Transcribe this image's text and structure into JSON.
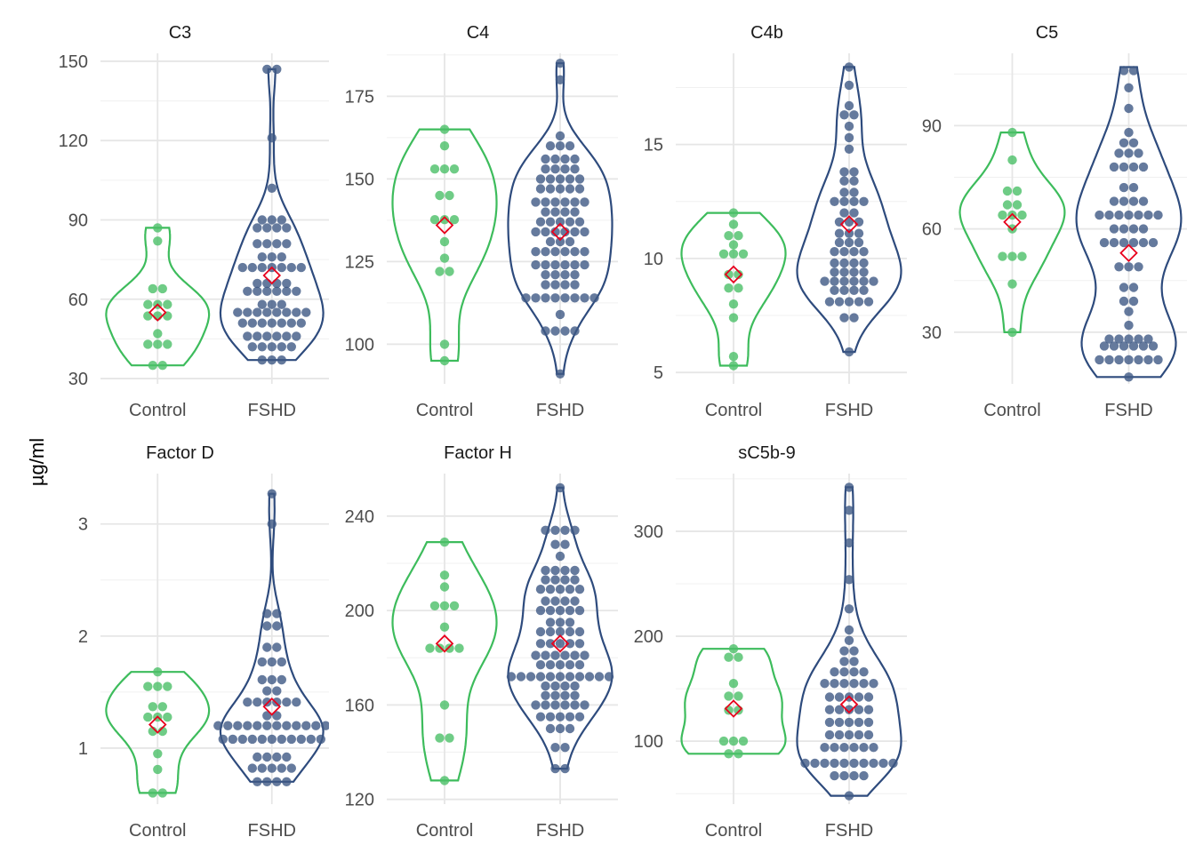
{
  "y_axis_label": "µg/ml",
  "colors": {
    "control": "#4bbf68",
    "fshd": "#2e4b7d",
    "mean_marker": "#e8001c",
    "grid": "#e6e6e6"
  },
  "chart_data": [
    {
      "type": "violin-dotplot",
      "title": "C3",
      "categories": [
        "Control",
        "FSHD"
      ],
      "ylim": [
        28,
        153
      ],
      "yticks": [
        30,
        60,
        90,
        120,
        150
      ],
      "ytick_labels": [
        "30",
        "60",
        "90",
        "120",
        "150"
      ],
      "series": [
        {
          "name": "Control",
          "mean": 55,
          "values": [
            35,
            35,
            43,
            43,
            43,
            47,
            53,
            53,
            55,
            58,
            58,
            58,
            64,
            64,
            82,
            87
          ]
        },
        {
          "name": "FSHD",
          "mean": 69,
          "values": [
            37,
            37,
            37,
            42,
            42,
            42,
            42,
            42,
            46,
            46,
            46,
            46,
            46,
            46,
            51,
            51,
            51,
            51,
            51,
            51,
            51,
            55,
            55,
            55,
            55,
            55,
            55,
            55,
            55,
            58,
            58,
            58,
            63,
            63,
            63,
            63,
            63,
            63,
            66,
            66,
            66,
            66,
            72,
            72,
            72,
            72,
            72,
            72,
            72,
            76,
            76,
            76,
            81,
            81,
            81,
            81,
            87,
            87,
            87,
            87,
            90,
            90,
            90,
            102,
            121,
            147,
            147
          ]
        }
      ]
    },
    {
      "type": "violin-dotplot",
      "title": "C4",
      "categories": [
        "Control",
        "FSHD"
      ],
      "ylim": [
        88,
        188
      ],
      "yticks": [
        100,
        125,
        150,
        175
      ],
      "ytick_labels": [
        "100",
        "125",
        "150",
        "175"
      ],
      "series": [
        {
          "name": "Control",
          "mean": 136,
          "values": [
            95,
            100,
            122,
            122,
            126,
            131,
            137,
            138,
            138,
            145,
            145,
            153,
            153,
            153,
            160,
            165
          ]
        },
        {
          "name": "FSHD",
          "mean": 134,
          "values": [
            91,
            104,
            104,
            104,
            104,
            109,
            114,
            114,
            114,
            114,
            114,
            114,
            114,
            114,
            118,
            118,
            118,
            118,
            121,
            121,
            121,
            121,
            124,
            124,
            124,
            124,
            124,
            124,
            128,
            128,
            128,
            128,
            128,
            128,
            131,
            131,
            131,
            134,
            134,
            134,
            134,
            134,
            134,
            137,
            137,
            137,
            137,
            137,
            140,
            140,
            140,
            140,
            143,
            143,
            143,
            143,
            143,
            143,
            147,
            147,
            147,
            147,
            147,
            150,
            150,
            150,
            150,
            150,
            153,
            153,
            153,
            153,
            156,
            156,
            156,
            156,
            160,
            160,
            160,
            163,
            180,
            185
          ]
        }
      ]
    },
    {
      "type": "violin-dotplot",
      "title": "C4b",
      "categories": [
        "Control",
        "FSHD"
      ],
      "ylim": [
        4.5,
        19
      ],
      "yticks": [
        5,
        10,
        15
      ],
      "ytick_labels": [
        "5",
        "10",
        "15"
      ],
      "series": [
        {
          "name": "Control",
          "mean": 9.3,
          "values": [
            5.3,
            5.7,
            7.4,
            8.0,
            8.7,
            8.7,
            9.3,
            9.3,
            10.2,
            10.2,
            10.2,
            10.6,
            11.0,
            11.0,
            11.5,
            12.0
          ]
        },
        {
          "name": "FSHD",
          "mean": 11.5,
          "values": [
            5.9,
            7.4,
            7.4,
            8.1,
            8.1,
            8.1,
            8.1,
            8.1,
            8.6,
            8.6,
            8.6,
            8.6,
            9.0,
            9.0,
            9.0,
            9.0,
            9.0,
            9.0,
            9.4,
            9.4,
            9.4,
            9.4,
            9.8,
            9.8,
            9.8,
            9.8,
            10.3,
            10.3,
            10.3,
            10.3,
            10.7,
            10.7,
            10.7,
            11.1,
            11.1,
            11.1,
            11.6,
            11.6,
            11.6,
            12.0,
            12.0,
            12.5,
            12.5,
            12.5,
            12.5,
            12.9,
            12.9,
            13.4,
            13.4,
            13.8,
            13.8,
            14.8,
            15.3,
            15.8,
            16.3,
            16.3,
            16.7,
            17.6,
            18.4
          ]
        }
      ]
    },
    {
      "type": "violin-dotplot",
      "title": "C5",
      "categories": [
        "Control",
        "FSHD"
      ],
      "ylim": [
        15,
        111
      ],
      "yticks": [
        30,
        60,
        90
      ],
      "ytick_labels": [
        "30",
        "60",
        "90"
      ],
      "series": [
        {
          "name": "Control",
          "mean": 62,
          "values": [
            30,
            44,
            52,
            52,
            52,
            60,
            64,
            64,
            64,
            67,
            67,
            71,
            71,
            80,
            88
          ]
        },
        {
          "name": "FSHD",
          "mean": 53,
          "values": [
            17,
            22,
            22,
            22,
            22,
            22,
            22,
            22,
            26,
            26,
            26,
            26,
            26,
            26,
            28,
            28,
            28,
            28,
            28,
            32,
            36,
            39,
            39,
            43,
            43,
            49,
            49,
            49,
            56,
            56,
            56,
            56,
            56,
            56,
            60,
            60,
            60,
            60,
            64,
            64,
            64,
            64,
            64,
            64,
            64,
            68,
            68,
            68,
            68,
            72,
            72,
            78,
            78,
            78,
            78,
            82,
            82,
            82,
            85,
            85,
            88,
            95,
            101,
            105,
            107
          ]
        }
      ]
    },
    {
      "type": "violin-dotplot",
      "title": "Factor D",
      "categories": [
        "Control",
        "FSHD"
      ],
      "ylim": [
        0.5,
        3.45
      ],
      "yticks": [
        1,
        2,
        3
      ],
      "ytick_labels": [
        "1",
        "2",
        "3"
      ],
      "series": [
        {
          "name": "Control",
          "mean": 1.21,
          "values": [
            0.6,
            0.6,
            0.81,
            0.95,
            1.15,
            1.15,
            1.25,
            1.29,
            1.29,
            1.37,
            1.37,
            1.55,
            1.55,
            1.55,
            1.68
          ]
        },
        {
          "name": "FSHD",
          "mean": 1.37,
          "values": [
            0.7,
            0.7,
            0.7,
            0.7,
            0.82,
            0.82,
            0.82,
            0.82,
            0.82,
            0.92,
            0.92,
            0.92,
            0.92,
            1.08,
            1.08,
            1.08,
            1.08,
            1.08,
            1.08,
            1.08,
            1.08,
            1.08,
            1.08,
            1.08,
            1.2,
            1.2,
            1.2,
            1.2,
            1.2,
            1.2,
            1.2,
            1.2,
            1.2,
            1.2,
            1.2,
            1.2,
            1.29,
            1.29,
            1.41,
            1.41,
            1.41,
            1.41,
            1.41,
            1.41,
            1.51,
            1.51,
            1.61,
            1.61,
            1.61,
            1.77,
            1.77,
            1.77,
            1.9,
            1.9,
            2.09,
            2.09,
            2.2,
            2.2,
            3.0,
            3.27
          ]
        }
      ]
    },
    {
      "type": "violin-dotplot",
      "title": "Factor H",
      "categories": [
        "Control",
        "FSHD"
      ],
      "ylim": [
        118,
        258
      ],
      "yticks": [
        120,
        160,
        200,
        240
      ],
      "ytick_labels": [
        "120",
        "160",
        "200",
        "240"
      ],
      "series": [
        {
          "name": "Control",
          "mean": 186,
          "values": [
            128,
            146,
            146,
            160,
            184,
            184,
            184,
            184,
            193,
            202,
            202,
            202,
            210,
            215,
            229
          ]
        },
        {
          "name": "FSHD",
          "mean": 186,
          "values": [
            133,
            133,
            142,
            142,
            150,
            150,
            150,
            155,
            155,
            155,
            155,
            155,
            160,
            160,
            160,
            160,
            160,
            160,
            164,
            164,
            164,
            164,
            168,
            168,
            168,
            168,
            172,
            172,
            172,
            172,
            172,
            172,
            172,
            172,
            172,
            172,
            172,
            177,
            177,
            177,
            177,
            177,
            181,
            181,
            181,
            181,
            181,
            181,
            186,
            186,
            186,
            186,
            186,
            191,
            191,
            191,
            191,
            191,
            195,
            195,
            195,
            200,
            200,
            200,
            200,
            200,
            204,
            204,
            204,
            204,
            209,
            209,
            209,
            209,
            209,
            213,
            213,
            213,
            213,
            217,
            217,
            217,
            217,
            223,
            228,
            228,
            234,
            234,
            234,
            234,
            252
          ]
        }
      ]
    },
    {
      "type": "violin-dotplot",
      "title": "sC5b-9",
      "categories": [
        "Control",
        "FSHD"
      ],
      "ylim": [
        40,
        355
      ],
      "yticks": [
        100,
        200,
        300
      ],
      "ytick_labels": [
        "100",
        "200",
        "300"
      ],
      "series": [
        {
          "name": "Control",
          "mean": 131,
          "values": [
            88,
            88,
            100,
            100,
            100,
            128,
            131,
            143,
            143,
            155,
            180,
            180,
            188
          ]
        },
        {
          "name": "FSHD",
          "mean": 135,
          "values": [
            48,
            67,
            67,
            67,
            67,
            79,
            79,
            79,
            79,
            79,
            79,
            79,
            79,
            79,
            79,
            94,
            94,
            94,
            94,
            94,
            94,
            106,
            106,
            106,
            106,
            106,
            118,
            118,
            118,
            118,
            118,
            130,
            130,
            130,
            130,
            130,
            142,
            142,
            142,
            142,
            142,
            155,
            155,
            155,
            155,
            155,
            155,
            166,
            166,
            166,
            166,
            176,
            176,
            186,
            186,
            196,
            206,
            226,
            254,
            289,
            320,
            342
          ]
        }
      ]
    }
  ]
}
